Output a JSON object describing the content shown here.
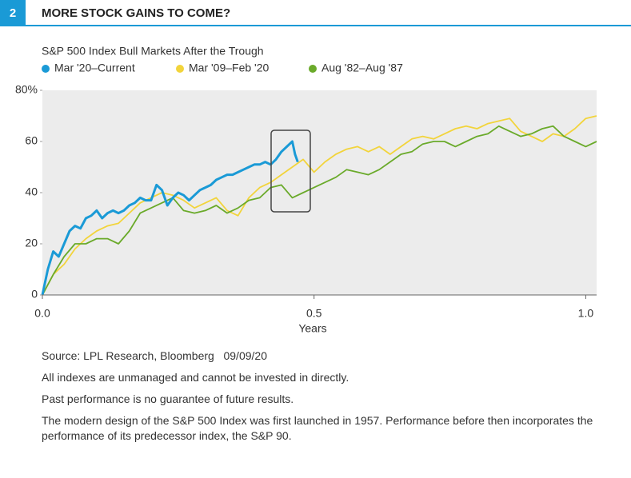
{
  "chart_data": {
    "type": "line",
    "figure_label": "2",
    "title": "MORE STOCK GAINS TO COME?",
    "subtitle": "S&P 500 Index Bull Markets After the Trough",
    "x_label": "Years",
    "xlim": [
      0,
      1.02
    ],
    "xticks": [
      {
        "value": 0,
        "label": "0.0"
      },
      0.5,
      {
        "value": 1,
        "label": "1.0"
      }
    ],
    "ylim": [
      0,
      80
    ],
    "yticks": [
      0,
      20,
      40,
      60,
      {
        "value": 80,
        "label": "80%"
      }
    ],
    "series": [
      {
        "name": "Mar '09–Feb '20",
        "color": "#f2d43b",
        "x": [
          0,
          0.02,
          0.04,
          0.06,
          0.08,
          0.1,
          0.12,
          0.14,
          0.16,
          0.18,
          0.2,
          0.22,
          0.24,
          0.26,
          0.28,
          0.3,
          0.32,
          0.34,
          0.36,
          0.38,
          0.4,
          0.42,
          0.44,
          0.46,
          0.48,
          0.5,
          0.52,
          0.54,
          0.56,
          0.58,
          0.6,
          0.62,
          0.64,
          0.66,
          0.68,
          0.7,
          0.72,
          0.74,
          0.76,
          0.78,
          0.8,
          0.82,
          0.84,
          0.86,
          0.88,
          0.9,
          0.92,
          0.94,
          0.96,
          0.98,
          1.0,
          1.02
        ],
        "values": [
          0,
          8,
          12,
          18,
          22,
          25,
          27,
          28,
          32,
          36,
          38,
          40,
          39,
          37,
          34,
          36,
          38,
          33,
          31,
          38,
          42,
          44,
          47,
          50,
          53,
          48,
          52,
          55,
          57,
          58,
          56,
          58,
          55,
          58,
          61,
          62,
          61,
          63,
          65,
          66,
          65,
          67,
          68,
          69,
          64,
          62,
          60,
          63,
          62,
          65,
          69,
          70
        ]
      },
      {
        "name": "Aug '82–Aug '87",
        "color": "#6aaa2a",
        "x": [
          0,
          0.02,
          0.04,
          0.06,
          0.08,
          0.1,
          0.12,
          0.14,
          0.16,
          0.18,
          0.2,
          0.22,
          0.24,
          0.26,
          0.28,
          0.3,
          0.32,
          0.34,
          0.36,
          0.38,
          0.4,
          0.42,
          0.44,
          0.46,
          0.48,
          0.5,
          0.52,
          0.54,
          0.56,
          0.58,
          0.6,
          0.62,
          0.64,
          0.66,
          0.68,
          0.7,
          0.72,
          0.74,
          0.76,
          0.78,
          0.8,
          0.82,
          0.84,
          0.86,
          0.88,
          0.9,
          0.92,
          0.94,
          0.96,
          0.98,
          1.0,
          1.02
        ],
        "values": [
          0,
          8,
          15,
          20,
          20,
          22,
          22,
          20,
          25,
          32,
          34,
          36,
          38,
          33,
          32,
          33,
          35,
          32,
          34,
          37,
          38,
          42,
          43,
          38,
          40,
          42,
          44,
          46,
          49,
          48,
          47,
          49,
          52,
          55,
          56,
          59,
          60,
          60,
          58,
          60,
          62,
          63,
          66,
          64,
          62,
          63,
          65,
          66,
          62,
          60,
          58,
          60
        ]
      },
      {
        "name": "Mar '20–Current",
        "color": "#1a9ad6",
        "x": [
          0,
          0.01,
          0.02,
          0.03,
          0.04,
          0.05,
          0.06,
          0.07,
          0.08,
          0.09,
          0.1,
          0.11,
          0.12,
          0.13,
          0.14,
          0.15,
          0.16,
          0.17,
          0.18,
          0.19,
          0.2,
          0.21,
          0.22,
          0.23,
          0.24,
          0.25,
          0.26,
          0.27,
          0.28,
          0.29,
          0.3,
          0.31,
          0.32,
          0.33,
          0.34,
          0.35,
          0.36,
          0.37,
          0.38,
          0.39,
          0.4,
          0.41,
          0.42,
          0.43,
          0.44,
          0.45,
          0.46,
          0.465,
          0.47
        ],
        "values": [
          0,
          10,
          17,
          15,
          20,
          25,
          27,
          26,
          30,
          31,
          33,
          30,
          32,
          33,
          32,
          33,
          35,
          36,
          38,
          37,
          37,
          43,
          41,
          35,
          38,
          40,
          39,
          37,
          39,
          41,
          42,
          43,
          45,
          46,
          47,
          47,
          48,
          49,
          50,
          51,
          51,
          52,
          51,
          53,
          56,
          58,
          60,
          55,
          52
        ]
      }
    ],
    "legend_order": [
      2,
      0,
      1
    ],
    "notes": [
      "Source: LPL Research, Bloomberg   09/09/20",
      "All indexes are unmanaged and cannot be invested in directly.",
      "Past performance is no guarantee of future results.",
      "The modern design of the S&P 500 Index was first launched in 1957. Performance before then incorporates the performance of its predecessor index, the S&P 90."
    ]
  }
}
